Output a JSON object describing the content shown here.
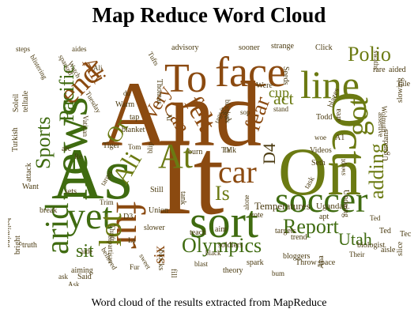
{
  "title": "Map Reduce Word Cloud",
  "caption": "Word cloud of the results extracted from MapReduce",
  "colors": {
    "brown": "#8b4a10",
    "olive": "#6b7a12",
    "green": "#3f6b10",
    "dark": "#4a3a10",
    "tan": "#a07a40"
  },
  "words": [
    {
      "text": "And",
      "color": "brown"
    },
    {
      "text": "It",
      "color": "brown"
    },
    {
      "text": "On",
      "color": "olive"
    },
    {
      "text": "As",
      "color": "green"
    },
    {
      "text": "news",
      "color": "green"
    },
    {
      "text": "To",
      "color": "brown"
    },
    {
      "text": "face",
      "color": "brown"
    },
    {
      "text": "line",
      "color": "olive"
    },
    {
      "text": "Oct",
      "color": "olive"
    },
    {
      "text": "sort",
      "color": "green"
    },
    {
      "text": "soccer",
      "color": "green"
    },
    {
      "text": "yet",
      "color": "green"
    },
    {
      "text": "car",
      "color": "brown"
    },
    {
      "text": "At",
      "color": "olive"
    },
    {
      "text": "fur",
      "color": "brown"
    },
    {
      "text": "got",
      "color": "olive"
    },
    {
      "text": "end",
      "color": "brown"
    },
    {
      "text": "arid",
      "color": "green"
    },
    {
      "text": "lot",
      "color": "olive"
    },
    {
      "text": "Polio",
      "color": "olive"
    },
    {
      "text": "Sports",
      "color": "green"
    },
    {
      "text": "Pacific",
      "color": "green"
    },
    {
      "text": "fear",
      "color": "brown"
    },
    {
      "text": "felt",
      "color": "brown"
    },
    {
      "text": "Olympics",
      "color": "green"
    },
    {
      "text": "Report",
      "color": "green"
    },
    {
      "text": "Utah",
      "color": "green"
    },
    {
      "text": "adding",
      "color": "olive"
    },
    {
      "text": "Ali",
      "color": "olive"
    },
    {
      "text": "Ali",
      "color": "brown"
    },
    {
      "text": "D4",
      "color": "dark"
    },
    {
      "text": "act",
      "color": "olive"
    },
    {
      "text": "Can",
      "color": "brown"
    },
    {
      "text": "Is",
      "color": "olive"
    },
    {
      "text": "Or",
      "color": "olive"
    },
    {
      "text": "Very",
      "color": "brown"
    },
    {
      "text": "sit",
      "color": "green"
    },
    {
      "text": "six",
      "color": "brown"
    },
    {
      "text": "cup",
      "color": "olive"
    },
    {
      "text": "Temperatures",
      "color": "dark"
    },
    {
      "text": "Ugandan",
      "color": "dark"
    },
    {
      "text": "soldiers",
      "color": "dark"
    },
    {
      "text": "teach",
      "color": "dark"
    },
    {
      "text": "Union",
      "color": "dark"
    },
    {
      "text": "slower",
      "color": "dark"
    },
    {
      "text": "Videos",
      "color": "dark"
    },
    {
      "text": "Seth",
      "color": "dark"
    },
    {
      "text": "burn",
      "color": "dark"
    },
    {
      "text": "talk",
      "color": "dark"
    },
    {
      "text": "blankets",
      "color": "dark"
    },
    {
      "text": "strange",
      "color": "dark"
    },
    {
      "text": "sooner",
      "color": "dark"
    },
    {
      "text": "advisory",
      "color": "dark"
    },
    {
      "text": "Click",
      "color": "dark"
    },
    {
      "text": "Tufts",
      "color": "dark"
    },
    {
      "text": "aides",
      "color": "dark"
    },
    {
      "text": "steps",
      "color": "dark"
    },
    {
      "text": "blistering",
      "color": "dark"
    },
    {
      "text": "telltale",
      "color": "dark"
    },
    {
      "text": "Soleil",
      "color": "dark"
    },
    {
      "text": "Turkish",
      "color": "dark"
    },
    {
      "text": "attack",
      "color": "dark"
    },
    {
      "text": "Want",
      "color": "dark"
    },
    {
      "text": "break",
      "color": "dark"
    },
    {
      "text": "believing",
      "color": "dark"
    },
    {
      "text": "truth",
      "color": "dark"
    },
    {
      "text": "bright",
      "color": "dark"
    },
    {
      "text": "aiming",
      "color": "dark"
    },
    {
      "text": "blocks",
      "color": "dark"
    },
    {
      "text": "theory",
      "color": "dark"
    },
    {
      "text": "bloggers",
      "color": "dark"
    },
    {
      "text": "Throw",
      "color": "dark"
    },
    {
      "text": "space",
      "color": "dark"
    },
    {
      "text": "biologist",
      "color": "dark"
    },
    {
      "text": "aisle",
      "color": "dark"
    },
    {
      "text": "trend",
      "color": "dark"
    },
    {
      "text": "targets",
      "color": "dark"
    },
    {
      "text": "swept",
      "color": "dark"
    },
    {
      "text": "Undoing",
      "color": "dark"
    },
    {
      "text": "Ugandans",
      "color": "dark"
    },
    {
      "text": "slowing",
      "color": "dark"
    },
    {
      "text": "blazes",
      "color": "dark"
    },
    {
      "text": "swirl",
      "color": "dark"
    },
    {
      "text": "blanket",
      "color": "dark"
    },
    {
      "text": "Thomas",
      "color": "dark"
    },
    {
      "text": "Tiger",
      "color": "dark"
    },
    {
      "text": "Todd",
      "color": "dark"
    },
    {
      "text": "Tech",
      "color": "dark"
    },
    {
      "text": "Tale",
      "color": "dark"
    },
    {
      "text": "aided",
      "color": "dark"
    },
    {
      "text": "slice",
      "color": "dark"
    },
    {
      "text": "sets",
      "color": "dark"
    },
    {
      "text": "arc",
      "color": "dark"
    },
    {
      "text": "Still",
      "color": "dark"
    },
    {
      "text": "Were",
      "color": "dark"
    },
    {
      "text": "Seeds",
      "color": "dark"
    },
    {
      "text": "vote",
      "color": "dark"
    },
    {
      "text": "task",
      "color": "dark"
    },
    {
      "text": "spark",
      "color": "dark"
    },
    {
      "text": "Said",
      "color": "dark"
    },
    {
      "text": "tap",
      "color": "dark"
    },
    {
      "text": "Ana",
      "color": "dark"
    },
    {
      "text": "apt",
      "color": "dark"
    },
    {
      "text": "rare",
      "color": "dark"
    },
    {
      "text": "Warm",
      "color": "dark"
    },
    {
      "text": "A1",
      "color": "dark"
    },
    {
      "text": "D3",
      "color": "dark"
    },
    {
      "text": "TV",
      "color": "dark"
    },
    {
      "text": "Ted",
      "color": "dark"
    },
    {
      "text": "aim",
      "color": "dark"
    },
    {
      "text": "tank",
      "color": "dark"
    },
    {
      "text": "fill",
      "color": "dark"
    },
    {
      "text": "area",
      "color": "dark"
    },
    {
      "text": "Tuesday",
      "color": "dark"
    },
    {
      "text": "Watch",
      "color": "dark"
    },
    {
      "text": "sparked",
      "color": "dark"
    },
    {
      "text": "Vatican",
      "color": "dark"
    },
    {
      "text": "Wolmuth",
      "color": "dark"
    },
    {
      "text": "assertive",
      "color": "dark"
    },
    {
      "text": "swaths",
      "color": "dark"
    },
    {
      "text": "alone",
      "color": "dark"
    },
    {
      "text": "bum",
      "color": "dark"
    },
    {
      "text": "black",
      "color": "dark"
    },
    {
      "text": "Thrift",
      "color": "dark"
    },
    {
      "text": "Their",
      "color": "dark"
    },
    {
      "text": "target",
      "color": "dark"
    },
    {
      "text": "believed",
      "color": "dark"
    },
    {
      "text": "sweet",
      "color": "dark"
    },
    {
      "text": "bipartisan",
      "color": "dark"
    },
    {
      "text": "blip",
      "color": "dark"
    },
    {
      "text": "Trim",
      "color": "dark"
    },
    {
      "text": "tags",
      "color": "dark"
    },
    {
      "text": "sop",
      "color": "dark"
    },
    {
      "text": "woe",
      "color": "dark"
    },
    {
      "text": "ask",
      "color": "dark"
    },
    {
      "text": "Ask",
      "color": "dark"
    },
    {
      "text": "Fur",
      "color": "dark"
    },
    {
      "text": "La",
      "color": "dark"
    },
    {
      "text": "Re",
      "color": "dark"
    },
    {
      "text": "Ali",
      "color": "dark"
    },
    {
      "text": "du",
      "color": "dark"
    },
    {
      "text": "Al",
      "color": "dark"
    },
    {
      "text": "Ted",
      "color": "dark"
    },
    {
      "text": "aide",
      "color": "dark"
    },
    {
      "text": "blast",
      "color": "dark"
    },
    {
      "text": "stand",
      "color": "dark"
    },
    {
      "text": "Tom",
      "color": "dark"
    }
  ]
}
